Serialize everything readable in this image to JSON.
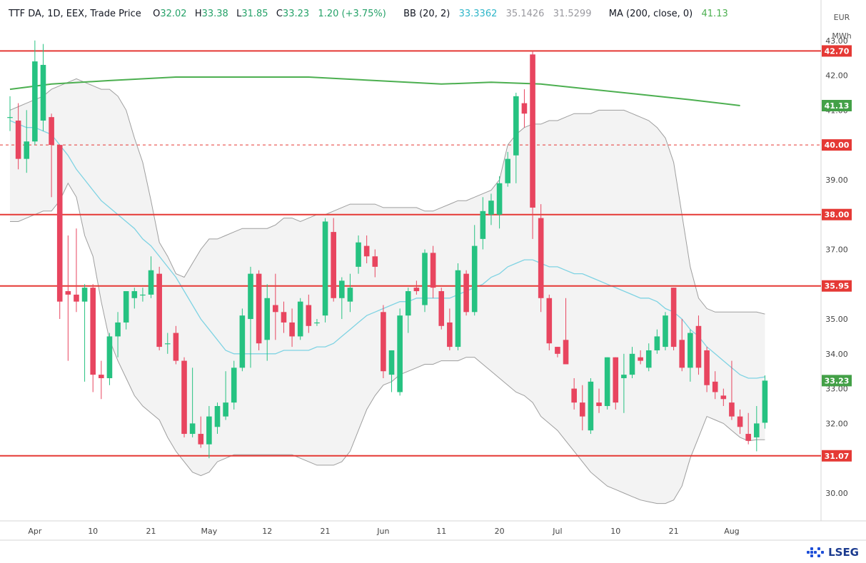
{
  "legend": {
    "symbol": "TTF DA, 1D, EEX, Trade Price",
    "open_label": "O",
    "open": "32.02",
    "high_label": "H",
    "high": "33.38",
    "low_label": "L",
    "low": "31.85",
    "close_label": "C",
    "close": "33.23",
    "change": "1.20 (+3.75%)",
    "bb_label": "BB (20, 2)",
    "bb_basis": "33.3362",
    "bb_upper": "35.1426",
    "bb_lower": "31.5299",
    "ma_label": "MA (200, close, 0)",
    "ma_value": "41.13"
  },
  "unit": {
    "top": "EUR",
    "bottom": "MWh"
  },
  "brand": "LSEG",
  "colors": {
    "up": "#26c281",
    "down": "#e8455f",
    "ma": "#4caf50",
    "bb_basis": "#7fd3e3",
    "bb_band": "#9e9e9e",
    "hline": "#e53935",
    "label_red": "#e53935",
    "label_green": "#43a047"
  },
  "chart_data": {
    "type": "candlestick",
    "ylim": [
      29.2,
      44.0
    ],
    "y_ticks": [
      30,
      31,
      32,
      33,
      34,
      35,
      36,
      37,
      38,
      39,
      40,
      41,
      42,
      43
    ],
    "y_tick_labels": [
      "30.00",
      "31.00",
      "32.00",
      "33.00",
      "34.00",
      "35.00",
      "36.00",
      "37.00",
      "38.00",
      "39.00",
      "40.00",
      "41.00",
      "42.00",
      "43.00"
    ],
    "x_ticks": [
      {
        "label": "Apr",
        "bar": 3
      },
      {
        "label": "10",
        "bar": 10
      },
      {
        "label": "21",
        "bar": 17
      },
      {
        "label": "May",
        "bar": 24
      },
      {
        "label": "12",
        "bar": 31
      },
      {
        "label": "21",
        "bar": 38
      },
      {
        "label": "Jun",
        "bar": 45
      },
      {
        "label": "11",
        "bar": 52
      },
      {
        "label": "20",
        "bar": 59
      },
      {
        "label": "Jul",
        "bar": 66
      },
      {
        "label": "10",
        "bar": 73
      },
      {
        "label": "21",
        "bar": 80
      },
      {
        "label": "Aug",
        "bar": 87
      }
    ],
    "candles": [
      [
        40.8,
        40.8,
        41.4,
        40.4
      ],
      [
        40.7,
        39.6,
        41.2,
        39.3
      ],
      [
        39.6,
        40.1,
        41.0,
        39.2
      ],
      [
        40.1,
        42.4,
        43.0,
        40.0
      ],
      [
        40.7,
        42.3,
        42.9,
        40.4
      ],
      [
        40.8,
        40.0,
        40.9,
        38.5
      ],
      [
        40.0,
        35.5,
        40.0,
        35.0
      ],
      [
        35.8,
        35.7,
        37.4,
        33.8
      ],
      [
        35.7,
        35.5,
        37.6,
        35.2
      ],
      [
        35.5,
        35.9,
        36.0,
        33.2
      ],
      [
        35.9,
        33.4,
        36.0,
        32.9
      ],
      [
        33.4,
        33.3,
        33.8,
        32.7
      ],
      [
        33.3,
        34.5,
        34.6,
        33.1
      ],
      [
        34.5,
        34.9,
        35.2,
        33.9
      ],
      [
        34.9,
        35.8,
        35.8,
        34.7
      ],
      [
        35.6,
        35.8,
        35.9,
        35.3
      ],
      [
        35.7,
        35.7,
        35.9,
        35.5
      ],
      [
        35.7,
        36.4,
        36.8,
        35.6
      ],
      [
        36.3,
        34.2,
        36.5,
        34.1
      ],
      [
        34.3,
        34.3,
        34.6,
        34.0
      ],
      [
        34.6,
        33.8,
        34.8,
        33.7
      ],
      [
        33.8,
        31.7,
        33.9,
        31.6
      ],
      [
        31.7,
        32.0,
        33.6,
        31.6
      ],
      [
        31.7,
        31.4,
        32.2,
        31.3
      ],
      [
        31.4,
        32.2,
        32.5,
        31.0
      ],
      [
        31.9,
        32.5,
        32.6,
        31.7
      ],
      [
        32.2,
        32.6,
        33.5,
        32.1
      ],
      [
        32.6,
        33.6,
        33.8,
        32.4
      ],
      [
        33.6,
        35.1,
        35.3,
        33.5
      ],
      [
        35.0,
        36.3,
        36.5,
        33.6
      ],
      [
        36.3,
        34.3,
        36.4,
        34.1
      ],
      [
        34.4,
        35.6,
        36.0,
        33.8
      ],
      [
        35.4,
        35.2,
        36.3,
        34.4
      ],
      [
        35.2,
        34.9,
        35.5,
        34.6
      ],
      [
        34.9,
        34.5,
        35.3,
        34.2
      ],
      [
        34.5,
        35.5,
        35.6,
        34.4
      ],
      [
        35.4,
        34.8,
        35.7,
        34.6
      ],
      [
        34.9,
        34.9,
        35.0,
        34.8
      ],
      [
        35.1,
        37.8,
        37.9,
        34.9
      ],
      [
        37.5,
        35.6,
        37.9,
        35.5
      ],
      [
        35.6,
        36.1,
        36.2,
        35.0
      ],
      [
        35.5,
        35.9,
        36.3,
        35.2
      ],
      [
        36.5,
        37.2,
        37.4,
        36.3
      ],
      [
        37.1,
        36.8,
        37.4,
        36.6
      ],
      [
        36.8,
        36.5,
        37.0,
        36.2
      ],
      [
        35.2,
        33.5,
        35.4,
        33.3
      ],
      [
        33.4,
        34.1,
        34.1,
        32.9
      ],
      [
        32.9,
        35.1,
        35.3,
        32.8
      ],
      [
        35.1,
        35.8,
        35.9,
        34.6
      ],
      [
        35.9,
        35.8,
        36.1,
        35.7
      ],
      [
        35.4,
        36.9,
        37.0,
        35.2
      ],
      [
        36.9,
        35.9,
        37.1,
        35.6
      ],
      [
        35.8,
        34.8,
        35.9,
        34.7
      ],
      [
        34.9,
        34.2,
        35.3,
        34.1
      ],
      [
        34.2,
        36.4,
        36.6,
        34.1
      ],
      [
        36.3,
        35.2,
        36.4,
        35.1
      ],
      [
        35.2,
        37.1,
        37.7,
        35.1
      ],
      [
        37.3,
        38.1,
        38.5,
        37.0
      ],
      [
        38.0,
        38.4,
        38.6,
        37.7
      ],
      [
        38.0,
        38.9,
        39.1,
        37.6
      ],
      [
        38.9,
        39.6,
        39.8,
        38.8
      ],
      [
        39.7,
        41.4,
        41.5,
        38.9
      ],
      [
        41.2,
        40.9,
        41.6,
        40.5
      ],
      [
        42.6,
        38.2,
        42.7,
        37.3
      ],
      [
        37.9,
        35.6,
        38.3,
        35.2
      ],
      [
        35.6,
        34.3,
        35.7,
        34.1
      ],
      [
        34.2,
        34.0,
        34.2,
        33.9
      ],
      [
        34.4,
        33.7,
        35.6,
        33.7
      ],
      [
        33.0,
        32.6,
        33.3,
        32.4
      ],
      [
        32.6,
        32.2,
        33.1,
        31.8
      ],
      [
        31.8,
        33.2,
        33.3,
        31.7
      ],
      [
        32.6,
        32.5,
        33.0,
        32.3
      ],
      [
        32.5,
        33.9,
        33.9,
        32.4
      ],
      [
        33.9,
        32.6,
        33.9,
        32.4
      ],
      [
        33.3,
        33.4,
        34.0,
        32.3
      ],
      [
        33.4,
        34.0,
        34.2,
        33.3
      ],
      [
        33.9,
        33.8,
        34.1,
        33.7
      ],
      [
        33.6,
        34.1,
        34.3,
        33.5
      ],
      [
        34.1,
        34.5,
        34.7,
        34.0
      ],
      [
        34.2,
        35.1,
        35.2,
        34.1
      ],
      [
        35.9,
        34.2,
        35.9,
        34.1
      ],
      [
        34.4,
        33.6,
        35.0,
        33.5
      ],
      [
        33.6,
        34.6,
        34.7,
        33.2
      ],
      [
        34.8,
        33.6,
        35.1,
        33.4
      ],
      [
        34.1,
        33.1,
        34.2,
        32.9
      ],
      [
        33.2,
        32.9,
        33.5,
        32.7
      ],
      [
        32.8,
        32.7,
        33.0,
        32.5
      ],
      [
        32.6,
        32.2,
        33.8,
        32.1
      ],
      [
        32.2,
        31.9,
        32.4,
        31.7
      ],
      [
        31.7,
        31.5,
        32.3,
        31.4
      ],
      [
        31.6,
        32.0,
        32.5,
        31.2
      ],
      [
        32.02,
        33.23,
        33.38,
        31.85
      ]
    ],
    "bb_upper": [
      41.0,
      41.1,
      41.2,
      41.3,
      41.4,
      41.6,
      41.7,
      41.8,
      41.9,
      41.8,
      41.7,
      41.6,
      41.6,
      41.4,
      41.0,
      40.2,
      39.5,
      38.4,
      37.2,
      36.8,
      36.3,
      36.2,
      36.6,
      37.0,
      37.3,
      37.3,
      37.4,
      37.5,
      37.6,
      37.6,
      37.6,
      37.6,
      37.7,
      37.9,
      37.9,
      37.8,
      37.9,
      38.0,
      38.0,
      38.1,
      38.2,
      38.3,
      38.3,
      38.3,
      38.3,
      38.2,
      38.2,
      38.2,
      38.2,
      38.2,
      38.1,
      38.1,
      38.2,
      38.3,
      38.4,
      38.4,
      38.5,
      38.6,
      38.7,
      39.0,
      40.0,
      40.3,
      40.5,
      40.6,
      40.6,
      40.7,
      40.7,
      40.8,
      40.9,
      40.9,
      40.9,
      41.0,
      41.0,
      41.0,
      41.0,
      40.9,
      40.8,
      40.7,
      40.5,
      40.2,
      39.5,
      38.0,
      36.5,
      35.6,
      35.3,
      35.2,
      35.2,
      35.2,
      35.2,
      35.2,
      35.2,
      35.1426
    ],
    "bb_basis": [
      40.7,
      40.6,
      40.5,
      40.5,
      40.4,
      40.3,
      40.0,
      39.7,
      39.3,
      39.0,
      38.7,
      38.4,
      38.2,
      38.0,
      37.8,
      37.6,
      37.3,
      37.1,
      36.8,
      36.5,
      36.2,
      35.8,
      35.4,
      35.0,
      34.7,
      34.4,
      34.1,
      34.0,
      34.0,
      34.0,
      34.0,
      34.0,
      34.0,
      34.1,
      34.1,
      34.1,
      34.1,
      34.2,
      34.2,
      34.3,
      34.5,
      34.7,
      34.9,
      35.1,
      35.2,
      35.3,
      35.4,
      35.5,
      35.5,
      35.6,
      35.6,
      35.6,
      35.6,
      35.6,
      35.7,
      35.8,
      35.9,
      36.0,
      36.2,
      36.3,
      36.5,
      36.6,
      36.7,
      36.7,
      36.6,
      36.5,
      36.5,
      36.4,
      36.3,
      36.3,
      36.2,
      36.1,
      36.0,
      35.9,
      35.8,
      35.7,
      35.6,
      35.6,
      35.5,
      35.3,
      35.2,
      35.0,
      34.7,
      34.5,
      34.2,
      34.0,
      33.8,
      33.6,
      33.4,
      33.3,
      33.3,
      33.3362
    ],
    "bb_lower": [
      37.8,
      37.8,
      37.9,
      38.0,
      38.1,
      38.1,
      38.4,
      38.9,
      38.5,
      37.4,
      36.8,
      35.5,
      34.4,
      33.8,
      33.3,
      32.8,
      32.5,
      32.3,
      32.1,
      31.6,
      31.2,
      30.9,
      30.6,
      30.5,
      30.6,
      30.9,
      31.0,
      31.1,
      31.1,
      31.1,
      31.1,
      31.1,
      31.1,
      31.1,
      31.1,
      31.0,
      30.9,
      30.8,
      30.8,
      30.8,
      30.9,
      31.2,
      31.8,
      32.4,
      32.8,
      33.1,
      33.2,
      33.4,
      33.5,
      33.6,
      33.7,
      33.7,
      33.8,
      33.8,
      33.8,
      33.9,
      33.9,
      33.7,
      33.5,
      33.3,
      33.1,
      32.9,
      32.8,
      32.6,
      32.2,
      32.0,
      31.8,
      31.5,
      31.2,
      30.9,
      30.6,
      30.4,
      30.2,
      30.1,
      30.0,
      29.9,
      29.8,
      29.75,
      29.7,
      29.7,
      29.8,
      30.2,
      31.0,
      31.6,
      32.2,
      32.1,
      32.0,
      31.8,
      31.6,
      31.5,
      31.53,
      31.5299
    ],
    "ma200": [
      [
        0,
        41.6
      ],
      [
        5,
        41.75
      ],
      [
        12,
        41.85
      ],
      [
        20,
        41.95
      ],
      [
        28,
        41.95
      ],
      [
        36,
        41.95
      ],
      [
        44,
        41.85
      ],
      [
        52,
        41.75
      ],
      [
        58,
        41.8
      ],
      [
        64,
        41.75
      ],
      [
        70,
        41.6
      ],
      [
        76,
        41.45
      ],
      [
        82,
        41.3
      ],
      [
        88,
        41.13
      ]
    ],
    "horizontal_lines": [
      {
        "value": 42.7,
        "label": "42.70",
        "style": "solid"
      },
      {
        "value": 40.0,
        "label": "40.00",
        "style": "dashed"
      },
      {
        "value": 38.0,
        "label": "38.00",
        "style": "solid"
      },
      {
        "value": 35.95,
        "label": "35.95",
        "style": "solid"
      },
      {
        "value": 31.07,
        "label": "31.07",
        "style": "solid"
      }
    ],
    "price_labels": [
      {
        "value": 41.13,
        "label": "41.13",
        "color": "green"
      },
      {
        "value": 33.23,
        "label": "33.23",
        "color": "green"
      }
    ]
  }
}
